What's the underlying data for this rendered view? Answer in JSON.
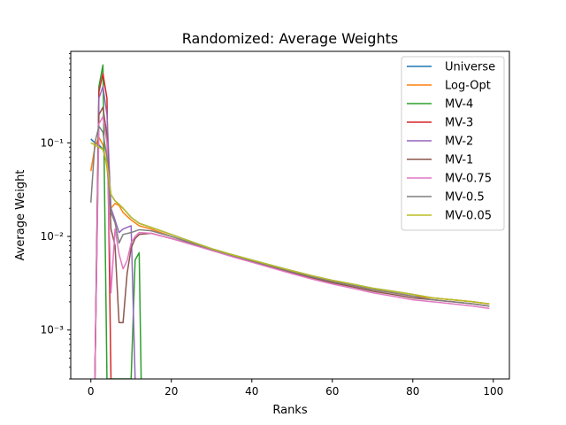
{
  "chart_data": {
    "type": "line",
    "title": "Randomized: Average Weights",
    "xlabel": "Ranks",
    "ylabel": "Average Weight",
    "yscale": "log",
    "xlim": [
      -5,
      104
    ],
    "ylim": [
      0.0003,
      0.95
    ],
    "grid": false,
    "legend_position": "top-right",
    "x_ticks": [
      0,
      20,
      40,
      60,
      80,
      100
    ],
    "x_tick_labels": [
      "0",
      "20",
      "40",
      "60",
      "80",
      "100"
    ],
    "y_major_ticks": [
      0.001,
      0.01,
      0.1
    ],
    "y_tick_labels": [
      "10⁻³",
      "10⁻²",
      "10⁻¹"
    ],
    "x_range": [
      0,
      99
    ],
    "series": [
      {
        "name": "Universe",
        "color": "#1f77b4",
        "points": [
          [
            0,
            0.11
          ],
          [
            1,
            0.1
          ],
          [
            2,
            0.095
          ],
          [
            3,
            0.085
          ],
          [
            4,
            0.06
          ],
          [
            5,
            0.028
          ],
          [
            6,
            0.024
          ],
          [
            7,
            0.022
          ],
          [
            8,
            0.02
          ],
          [
            10,
            0.016
          ],
          [
            12,
            0.0138
          ],
          [
            15,
            0.0125
          ],
          [
            20,
            0.0105
          ],
          [
            25,
            0.0088
          ],
          [
            30,
            0.0074
          ],
          [
            35,
            0.0064
          ],
          [
            40,
            0.0056
          ],
          [
            45,
            0.0049
          ],
          [
            50,
            0.0043
          ],
          [
            55,
            0.0038
          ],
          [
            60,
            0.0034
          ],
          [
            65,
            0.0031
          ],
          [
            70,
            0.0028
          ],
          [
            75,
            0.0026
          ],
          [
            80,
            0.0024
          ],
          [
            85,
            0.0022
          ],
          [
            90,
            0.0021
          ],
          [
            95,
            0.002
          ],
          [
            99,
            0.0019
          ]
        ]
      },
      {
        "name": "Log-Opt",
        "color": "#ff7f0e",
        "points": [
          [
            0,
            0.05
          ],
          [
            1,
            0.09
          ],
          [
            2,
            0.115
          ],
          [
            3,
            0.095
          ],
          [
            4,
            0.055
          ],
          [
            5,
            0.02
          ],
          [
            6,
            0.0225
          ],
          [
            7,
            0.0215
          ],
          [
            8,
            0.018
          ],
          [
            10,
            0.015
          ],
          [
            12,
            0.013
          ],
          [
            15,
            0.012
          ],
          [
            20,
            0.01
          ],
          [
            25,
            0.0085
          ],
          [
            30,
            0.0072
          ],
          [
            35,
            0.0063
          ],
          [
            40,
            0.0055
          ],
          [
            45,
            0.0048
          ],
          [
            50,
            0.0042
          ],
          [
            55,
            0.0037
          ],
          [
            60,
            0.0033
          ],
          [
            65,
            0.003
          ],
          [
            70,
            0.0027
          ],
          [
            75,
            0.0025
          ],
          [
            80,
            0.0023
          ],
          [
            85,
            0.0022
          ],
          [
            90,
            0.0021
          ],
          [
            95,
            0.002
          ],
          [
            99,
            0.0019
          ]
        ]
      },
      {
        "name": "MV-4",
        "color": "#2ca02c",
        "points": [
          [
            1,
            0.0003
          ],
          [
            2,
            0.4
          ],
          [
            3,
            0.68
          ],
          [
            4,
            0.0003
          ],
          [
            10,
            0.0003
          ],
          [
            11,
            0.0056
          ],
          [
            12,
            0.0067
          ],
          [
            12.5,
            0.0003
          ]
        ]
      },
      {
        "name": "MV-3",
        "color": "#d62728",
        "points": [
          [
            1,
            0.0003
          ],
          [
            2,
            0.35
          ],
          [
            3,
            0.55
          ],
          [
            4,
            0.3
          ],
          [
            5,
            0.0003
          ]
        ]
      },
      {
        "name": "MV-2",
        "color": "#9467bd",
        "points": [
          [
            1,
            0.0003
          ],
          [
            2,
            0.3
          ],
          [
            3,
            0.4
          ],
          [
            4,
            0.2
          ],
          [
            5,
            0.02
          ],
          [
            6,
            0.015
          ],
          [
            7,
            0.011
          ],
          [
            8,
            0.012
          ],
          [
            10,
            0.013
          ],
          [
            11,
            0.0003
          ]
        ]
      },
      {
        "name": "MV-1",
        "color": "#8c564b",
        "points": [
          [
            1,
            0.0003
          ],
          [
            2,
            0.2
          ],
          [
            3,
            0.24
          ],
          [
            4,
            0.12
          ],
          [
            5,
            0.012
          ],
          [
            6,
            0.008
          ],
          [
            7,
            0.0012
          ],
          [
            8,
            0.0012
          ],
          [
            9,
            0.004
          ],
          [
            10,
            0.0075
          ],
          [
            11,
            0.0095
          ],
          [
            12,
            0.0105
          ],
          [
            15,
            0.0108
          ],
          [
            20,
            0.0095
          ],
          [
            25,
            0.0083
          ],
          [
            30,
            0.0071
          ],
          [
            35,
            0.0062
          ],
          [
            40,
            0.0054
          ],
          [
            45,
            0.0047
          ],
          [
            50,
            0.0041
          ],
          [
            55,
            0.0036
          ],
          [
            60,
            0.0032
          ],
          [
            65,
            0.0029
          ],
          [
            70,
            0.0026
          ],
          [
            75,
            0.0024
          ],
          [
            80,
            0.0022
          ],
          [
            85,
            0.0021
          ],
          [
            90,
            0.002
          ],
          [
            95,
            0.0019
          ],
          [
            99,
            0.0018
          ]
        ]
      },
      {
        "name": "MV-0.75",
        "color": "#e377c2",
        "points": [
          [
            1,
            0.0003
          ],
          [
            2,
            0.16
          ],
          [
            3,
            0.19
          ],
          [
            4,
            0.1
          ],
          [
            5,
            0.0025
          ],
          [
            6,
            0.012
          ],
          [
            7,
            0.0065
          ],
          [
            8,
            0.0045
          ],
          [
            9,
            0.0055
          ],
          [
            10,
            0.0085
          ],
          [
            11,
            0.01
          ],
          [
            12,
            0.011
          ],
          [
            15,
            0.0108
          ],
          [
            20,
            0.0095
          ],
          [
            25,
            0.0082
          ],
          [
            30,
            0.0071
          ],
          [
            35,
            0.0061
          ],
          [
            40,
            0.0053
          ],
          [
            45,
            0.0046
          ],
          [
            50,
            0.004
          ],
          [
            55,
            0.0035
          ],
          [
            60,
            0.0031
          ],
          [
            65,
            0.0028
          ],
          [
            70,
            0.0025
          ],
          [
            75,
            0.0023
          ],
          [
            80,
            0.0021
          ],
          [
            85,
            0.002
          ],
          [
            90,
            0.0019
          ],
          [
            95,
            0.0018
          ],
          [
            99,
            0.0017
          ]
        ]
      },
      {
        "name": "MV-0.5",
        "color": "#7f7f7f",
        "points": [
          [
            0,
            0.023
          ],
          [
            1,
            0.1
          ],
          [
            2,
            0.15
          ],
          [
            3,
            0.13
          ],
          [
            4,
            0.07
          ],
          [
            5,
            0.018
          ],
          [
            6,
            0.014
          ],
          [
            7,
            0.0085
          ],
          [
            8,
            0.0105
          ],
          [
            10,
            0.011
          ],
          [
            12,
            0.0118
          ],
          [
            15,
            0.0115
          ],
          [
            20,
            0.01
          ],
          [
            25,
            0.0085
          ],
          [
            30,
            0.0073
          ],
          [
            35,
            0.0063
          ],
          [
            40,
            0.0055
          ],
          [
            45,
            0.0048
          ],
          [
            50,
            0.0042
          ],
          [
            55,
            0.0037
          ],
          [
            60,
            0.0033
          ],
          [
            65,
            0.003
          ],
          [
            70,
            0.0027
          ],
          [
            75,
            0.0025
          ],
          [
            80,
            0.0023
          ],
          [
            85,
            0.0021
          ],
          [
            90,
            0.002
          ],
          [
            95,
            0.0019
          ],
          [
            99,
            0.0018
          ]
        ]
      },
      {
        "name": "MV-0.05",
        "color": "#bcbd22",
        "points": [
          [
            0,
            0.1
          ],
          [
            1,
            0.095
          ],
          [
            2,
            0.09
          ],
          [
            3,
            0.085
          ],
          [
            4,
            0.06
          ],
          [
            5,
            0.028
          ],
          [
            6,
            0.024
          ],
          [
            7,
            0.022
          ],
          [
            8,
            0.02
          ],
          [
            10,
            0.016
          ],
          [
            12,
            0.0138
          ],
          [
            15,
            0.0125
          ],
          [
            20,
            0.0105
          ],
          [
            25,
            0.0088
          ],
          [
            30,
            0.0074
          ],
          [
            35,
            0.0064
          ],
          [
            40,
            0.0056
          ],
          [
            45,
            0.0049
          ],
          [
            50,
            0.0043
          ],
          [
            55,
            0.0038
          ],
          [
            60,
            0.0034
          ],
          [
            65,
            0.0031
          ],
          [
            70,
            0.0028
          ],
          [
            75,
            0.0026
          ],
          [
            80,
            0.0024
          ],
          [
            85,
            0.0022
          ],
          [
            90,
            0.0021
          ],
          [
            95,
            0.002
          ],
          [
            99,
            0.0019
          ]
        ]
      }
    ]
  }
}
